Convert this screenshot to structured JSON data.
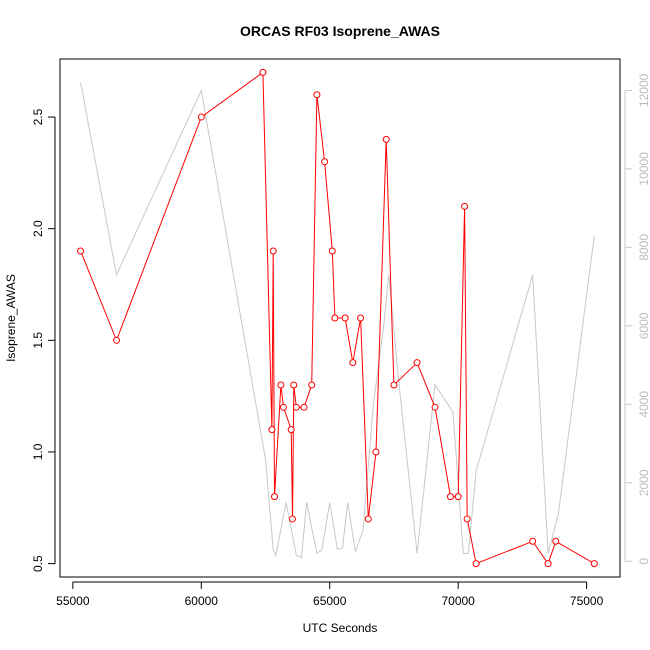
{
  "chart_data": {
    "type": "line",
    "title": "ORCAS RF03 Isoprene_AWAS",
    "xlabel": "UTC Seconds",
    "ylabel": "Isoprene_AWAS",
    "xlim": [
      54500,
      76300
    ],
    "ylim": [
      0.44,
      2.76
    ],
    "y2lim": [
      -400,
      12800
    ],
    "xticks": [
      55000,
      60000,
      65000,
      70000,
      75000
    ],
    "yticks": [
      0.5,
      1.0,
      1.5,
      2.0,
      2.5
    ],
    "y2ticks": [
      0,
      2000,
      4000,
      6000,
      8000,
      10000,
      12000
    ],
    "xtick_labels": [
      "55000",
      "60000",
      "65000",
      "70000",
      "75000"
    ],
    "ytick_labels": [
      "0.5",
      "1.0",
      "1.5",
      "2.0",
      "2.5"
    ],
    "y2tick_labels": [
      "0",
      "2000",
      "4000",
      "6000",
      "8000",
      "10000",
      "12000"
    ],
    "colors": {
      "primary": "#ff0000",
      "secondary": "#c8c8c8"
    },
    "grid": false,
    "series": [
      {
        "axis": "left",
        "marker": "open-circle",
        "x": [
          55300,
          56700,
          60000,
          62400,
          62750,
          62800,
          62850,
          63100,
          63200,
          63500,
          63550,
          63600,
          63700,
          64000,
          64300,
          64500,
          64800,
          65100,
          65200,
          65600,
          65900,
          66200,
          66500,
          66800,
          67200,
          67500,
          68400,
          69100,
          69700,
          70000,
          70250,
          70350,
          70700,
          72900,
          73500,
          73800,
          75300
        ],
        "y": [
          1.9,
          1.5,
          2.5,
          2.7,
          1.1,
          1.9,
          0.8,
          1.3,
          1.2,
          1.1,
          0.7,
          1.3,
          1.2,
          1.2,
          1.3,
          2.6,
          2.3,
          1.9,
          1.6,
          1.6,
          1.4,
          1.6,
          0.7,
          1.0,
          2.4,
          1.3,
          1.4,
          1.2,
          0.8,
          0.8,
          2.1,
          0.7,
          0.5,
          0.6,
          0.5,
          0.6,
          0.5
        ]
      },
      {
        "axis": "right",
        "x": [
          55300,
          56700,
          60000,
          62500,
          62800,
          62900,
          63300,
          63700,
          63900,
          64100,
          64500,
          64700,
          65000,
          65300,
          65500,
          65700,
          66000,
          66300,
          66700,
          67100,
          67300,
          67700,
          68400,
          69100,
          69800,
          70200,
          70400,
          70700,
          72900,
          73500,
          73900,
          75300
        ],
        "y": [
          12200,
          7300,
          12000,
          2600,
          300,
          150,
          1500,
          150,
          100,
          1500,
          200,
          300,
          1500,
          300,
          350,
          1500,
          250,
          800,
          4000,
          6000,
          7300,
          4500,
          200,
          4500,
          3800,
          200,
          200,
          2300,
          7300,
          200,
          1200,
          8300
        ]
      }
    ]
  }
}
